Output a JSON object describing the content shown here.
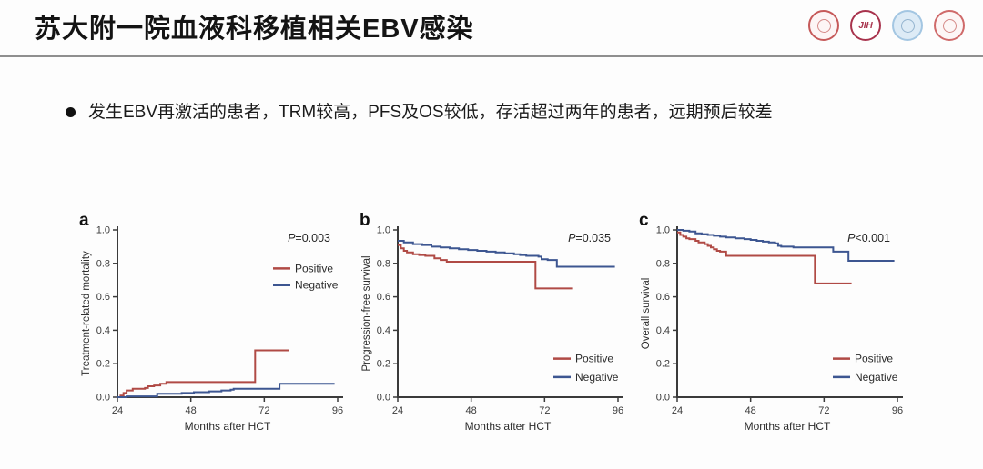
{
  "slide": {
    "title": "苏大附一院血液科移植相关EBV感染",
    "bullet": "发生EBV再激活的患者，TRM较高，PFS及OS较低，存活超过两年的患者，远期预后较差"
  },
  "logos": [
    {
      "name": "red-seal-logo",
      "label": "",
      "ring": "#c65a5a",
      "bg": "#fdf5f5",
      "fg": "#c0504d"
    },
    {
      "name": "jih-logo",
      "label": "JIH",
      "ring": "#a8334d",
      "bg": "#ffffff",
      "fg": "#a8334d"
    },
    {
      "name": "blue-seal-logo",
      "label": "",
      "ring": "#a3c6e2",
      "bg": "#ddebf6",
      "fg": "#6d96ba"
    },
    {
      "name": "red-emblem-logo",
      "label": "",
      "ring": "#cf6a6a",
      "bg": "#fdf6f6",
      "fg": "#c0504d"
    }
  ],
  "colors": {
    "positive": "#b04a45",
    "negative": "#3d5691",
    "axis": "#3b3b3b"
  },
  "chart_data": [
    {
      "panel": "a",
      "type": "line",
      "ylabel": "Treatment-related mortality",
      "xlabel": "Months after HCT",
      "p_label": "P=0.003",
      "xlim": [
        24,
        96
      ],
      "ylim": [
        0,
        1
      ],
      "xticks": [
        24,
        48,
        72,
        96
      ],
      "yticks": [
        0.0,
        0.2,
        0.4,
        0.6,
        0.8,
        1.0
      ],
      "grid": false,
      "legend_position": "top-right",
      "series": [
        {
          "name": "Positive",
          "color": "#b04a45",
          "points": [
            [
              24,
              0
            ],
            [
              25,
              0.01
            ],
            [
              26,
              0.025
            ],
            [
              27,
              0.04
            ],
            [
              29,
              0.05
            ],
            [
              33,
              0.055
            ],
            [
              34,
              0.065
            ],
            [
              36,
              0.07
            ],
            [
              38,
              0.08
            ],
            [
              40,
              0.09
            ],
            [
              69,
              0.09
            ],
            [
              69,
              0.28
            ],
            [
              80,
              0.28
            ]
          ]
        },
        {
          "name": "Negative",
          "color": "#3d5691",
          "points": [
            [
              24,
              0
            ],
            [
              27,
              0.005
            ],
            [
              36,
              0.005
            ],
            [
              37,
              0.02
            ],
            [
              45,
              0.025
            ],
            [
              49,
              0.03
            ],
            [
              54,
              0.035
            ],
            [
              58,
              0.04
            ],
            [
              61,
              0.045
            ],
            [
              62,
              0.05
            ],
            [
              76,
              0.05
            ],
            [
              77,
              0.08
            ],
            [
              95,
              0.08
            ]
          ]
        }
      ]
    },
    {
      "panel": "b",
      "type": "line",
      "ylabel": "Progression-free survival",
      "xlabel": "Months after HCT",
      "p_label": "P=0.035",
      "xlim": [
        24,
        96
      ],
      "ylim": [
        0,
        1
      ],
      "xticks": [
        24,
        48,
        72,
        96
      ],
      "yticks": [
        0.0,
        0.2,
        0.4,
        0.6,
        0.8,
        1.0
      ],
      "grid": false,
      "legend_position": "bottom-right",
      "series": [
        {
          "name": "Positive",
          "color": "#b04a45",
          "points": [
            [
              24,
              0.91
            ],
            [
              25,
              0.89
            ],
            [
              26,
              0.875
            ],
            [
              27,
              0.865
            ],
            [
              29,
              0.855
            ],
            [
              31,
              0.85
            ],
            [
              33,
              0.845
            ],
            [
              36,
              0.83
            ],
            [
              38,
              0.82
            ],
            [
              40,
              0.81
            ],
            [
              69,
              0.81
            ],
            [
              69,
              0.65
            ],
            [
              81,
              0.65
            ]
          ]
        },
        {
          "name": "Negative",
          "color": "#3d5691",
          "points": [
            [
              24,
              0.935
            ],
            [
              26,
              0.925
            ],
            [
              29,
              0.915
            ],
            [
              32,
              0.91
            ],
            [
              35,
              0.9
            ],
            [
              38,
              0.895
            ],
            [
              41,
              0.89
            ],
            [
              44,
              0.885
            ],
            [
              47,
              0.88
            ],
            [
              50,
              0.875
            ],
            [
              53,
              0.87
            ],
            [
              56,
              0.865
            ],
            [
              59,
              0.86
            ],
            [
              62,
              0.855
            ],
            [
              64,
              0.85
            ],
            [
              66,
              0.845
            ],
            [
              70,
              0.84
            ],
            [
              71,
              0.825
            ],
            [
              73,
              0.82
            ],
            [
              76,
              0.78
            ],
            [
              95,
              0.78
            ]
          ]
        }
      ]
    },
    {
      "panel": "c",
      "type": "line",
      "ylabel": "Overall survival",
      "xlabel": "Months after HCT",
      "p_label": "P<0.001",
      "xlim": [
        24,
        96
      ],
      "ylim": [
        0,
        1
      ],
      "xticks": [
        24,
        48,
        72,
        96
      ],
      "yticks": [
        0.0,
        0.2,
        0.4,
        0.6,
        0.8,
        1.0
      ],
      "grid": false,
      "legend_position": "bottom-right",
      "series": [
        {
          "name": "Positive",
          "color": "#b04a45",
          "points": [
            [
              24,
              0.985
            ],
            [
              25,
              0.97
            ],
            [
              26,
              0.96
            ],
            [
              27,
              0.95
            ],
            [
              28,
              0.945
            ],
            [
              30,
              0.935
            ],
            [
              31,
              0.925
            ],
            [
              33,
              0.915
            ],
            [
              34,
              0.905
            ],
            [
              35,
              0.895
            ],
            [
              36,
              0.885
            ],
            [
              37,
              0.875
            ],
            [
              38,
              0.87
            ],
            [
              40,
              0.845
            ],
            [
              69,
              0.845
            ],
            [
              69,
              0.68
            ],
            [
              81,
              0.68
            ]
          ]
        },
        {
          "name": "Negative",
          "color": "#3d5691",
          "points": [
            [
              24,
              1.0
            ],
            [
              26,
              0.995
            ],
            [
              28,
              0.99
            ],
            [
              30,
              0.98
            ],
            [
              32,
              0.975
            ],
            [
              34,
              0.97
            ],
            [
              36,
              0.965
            ],
            [
              38,
              0.96
            ],
            [
              40,
              0.955
            ],
            [
              43,
              0.95
            ],
            [
              46,
              0.945
            ],
            [
              48,
              0.94
            ],
            [
              50,
              0.935
            ],
            [
              52,
              0.93
            ],
            [
              54,
              0.925
            ],
            [
              56,
              0.92
            ],
            [
              57,
              0.905
            ],
            [
              58,
              0.9
            ],
            [
              62,
              0.895
            ],
            [
              74,
              0.895
            ],
            [
              75,
              0.87
            ],
            [
              79,
              0.87
            ],
            [
              80,
              0.815
            ],
            [
              95,
              0.815
            ]
          ]
        }
      ]
    }
  ]
}
